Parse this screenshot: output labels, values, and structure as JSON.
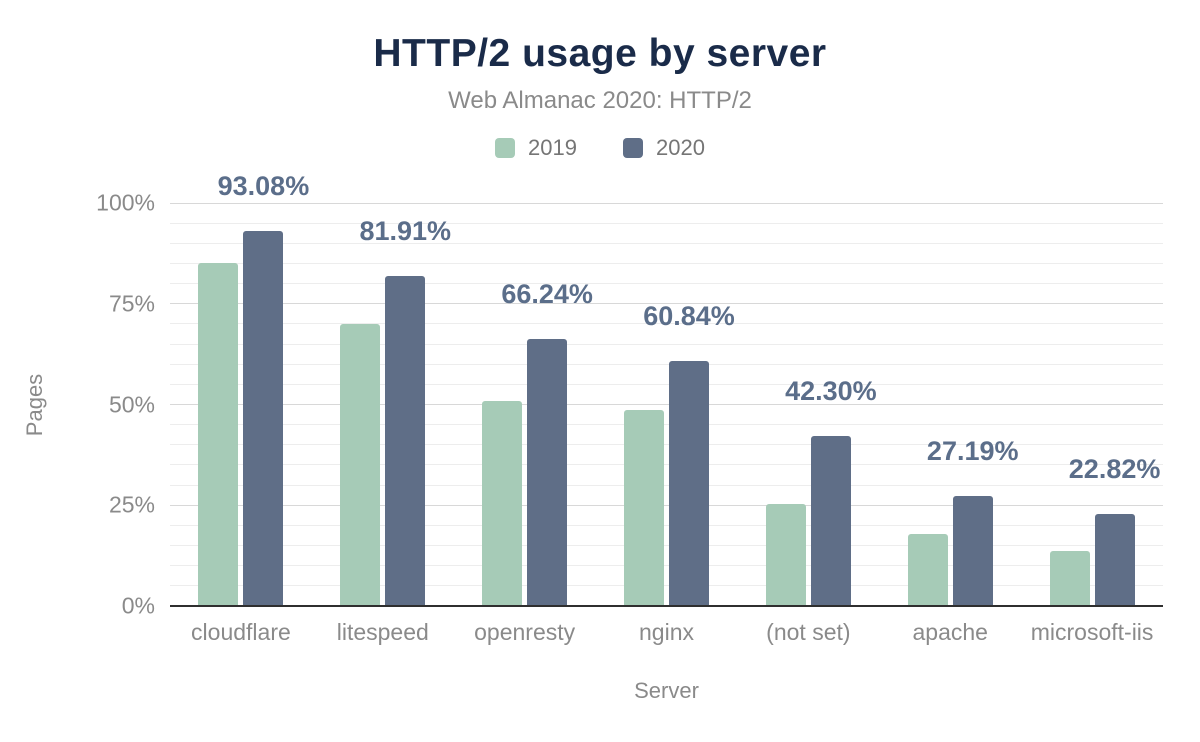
{
  "header": {
    "title": "HTTP/2 usage by server",
    "subtitle": "Web Almanac 2020: HTTP/2"
  },
  "axes": {
    "y_title": "Pages",
    "x_title": "Server",
    "y_ticks": [
      "0%",
      "25%",
      "50%",
      "75%",
      "100%"
    ]
  },
  "colors": {
    "title": "#1a2b49",
    "subtitle_text": "#8a8a8a",
    "axis_text": "#8a8a8a",
    "legend_text": "#757575",
    "value_label": "#5b6e8a",
    "grid_minor": "#ededed",
    "grid_major": "#d8d8d8",
    "axis_line": "#2f2f2f",
    "series_2019": "#a6cbb7",
    "series_2020": "#5f6e87"
  },
  "chart_data": {
    "type": "bar",
    "title": "HTTP/2 usage by server",
    "subtitle": "Web Almanac 2020: HTTP/2",
    "xlabel": "Server",
    "ylabel": "Pages",
    "ylim": [
      0,
      100
    ],
    "y_major_step": 25,
    "y_minor_step": 5,
    "grid": true,
    "legend_position": "top",
    "categories": [
      "cloudflare",
      "litespeed",
      "openresty",
      "nginx",
      "(not set)",
      "apache",
      "microsoft-iis"
    ],
    "series": [
      {
        "name": "2019",
        "color": "#a6cbb7",
        "values": [
          85.2,
          70.1,
          50.9,
          48.7,
          25.2,
          17.8,
          13.7
        ],
        "labels": null
      },
      {
        "name": "2020",
        "color": "#5f6e87",
        "values": [
          93.08,
          81.91,
          66.24,
          60.84,
          42.3,
          27.19,
          22.82
        ],
        "labels": [
          "93.08%",
          "81.91%",
          "66.24%",
          "60.84%",
          "42.30%",
          "27.19%",
          "22.82%"
        ]
      }
    ]
  }
}
